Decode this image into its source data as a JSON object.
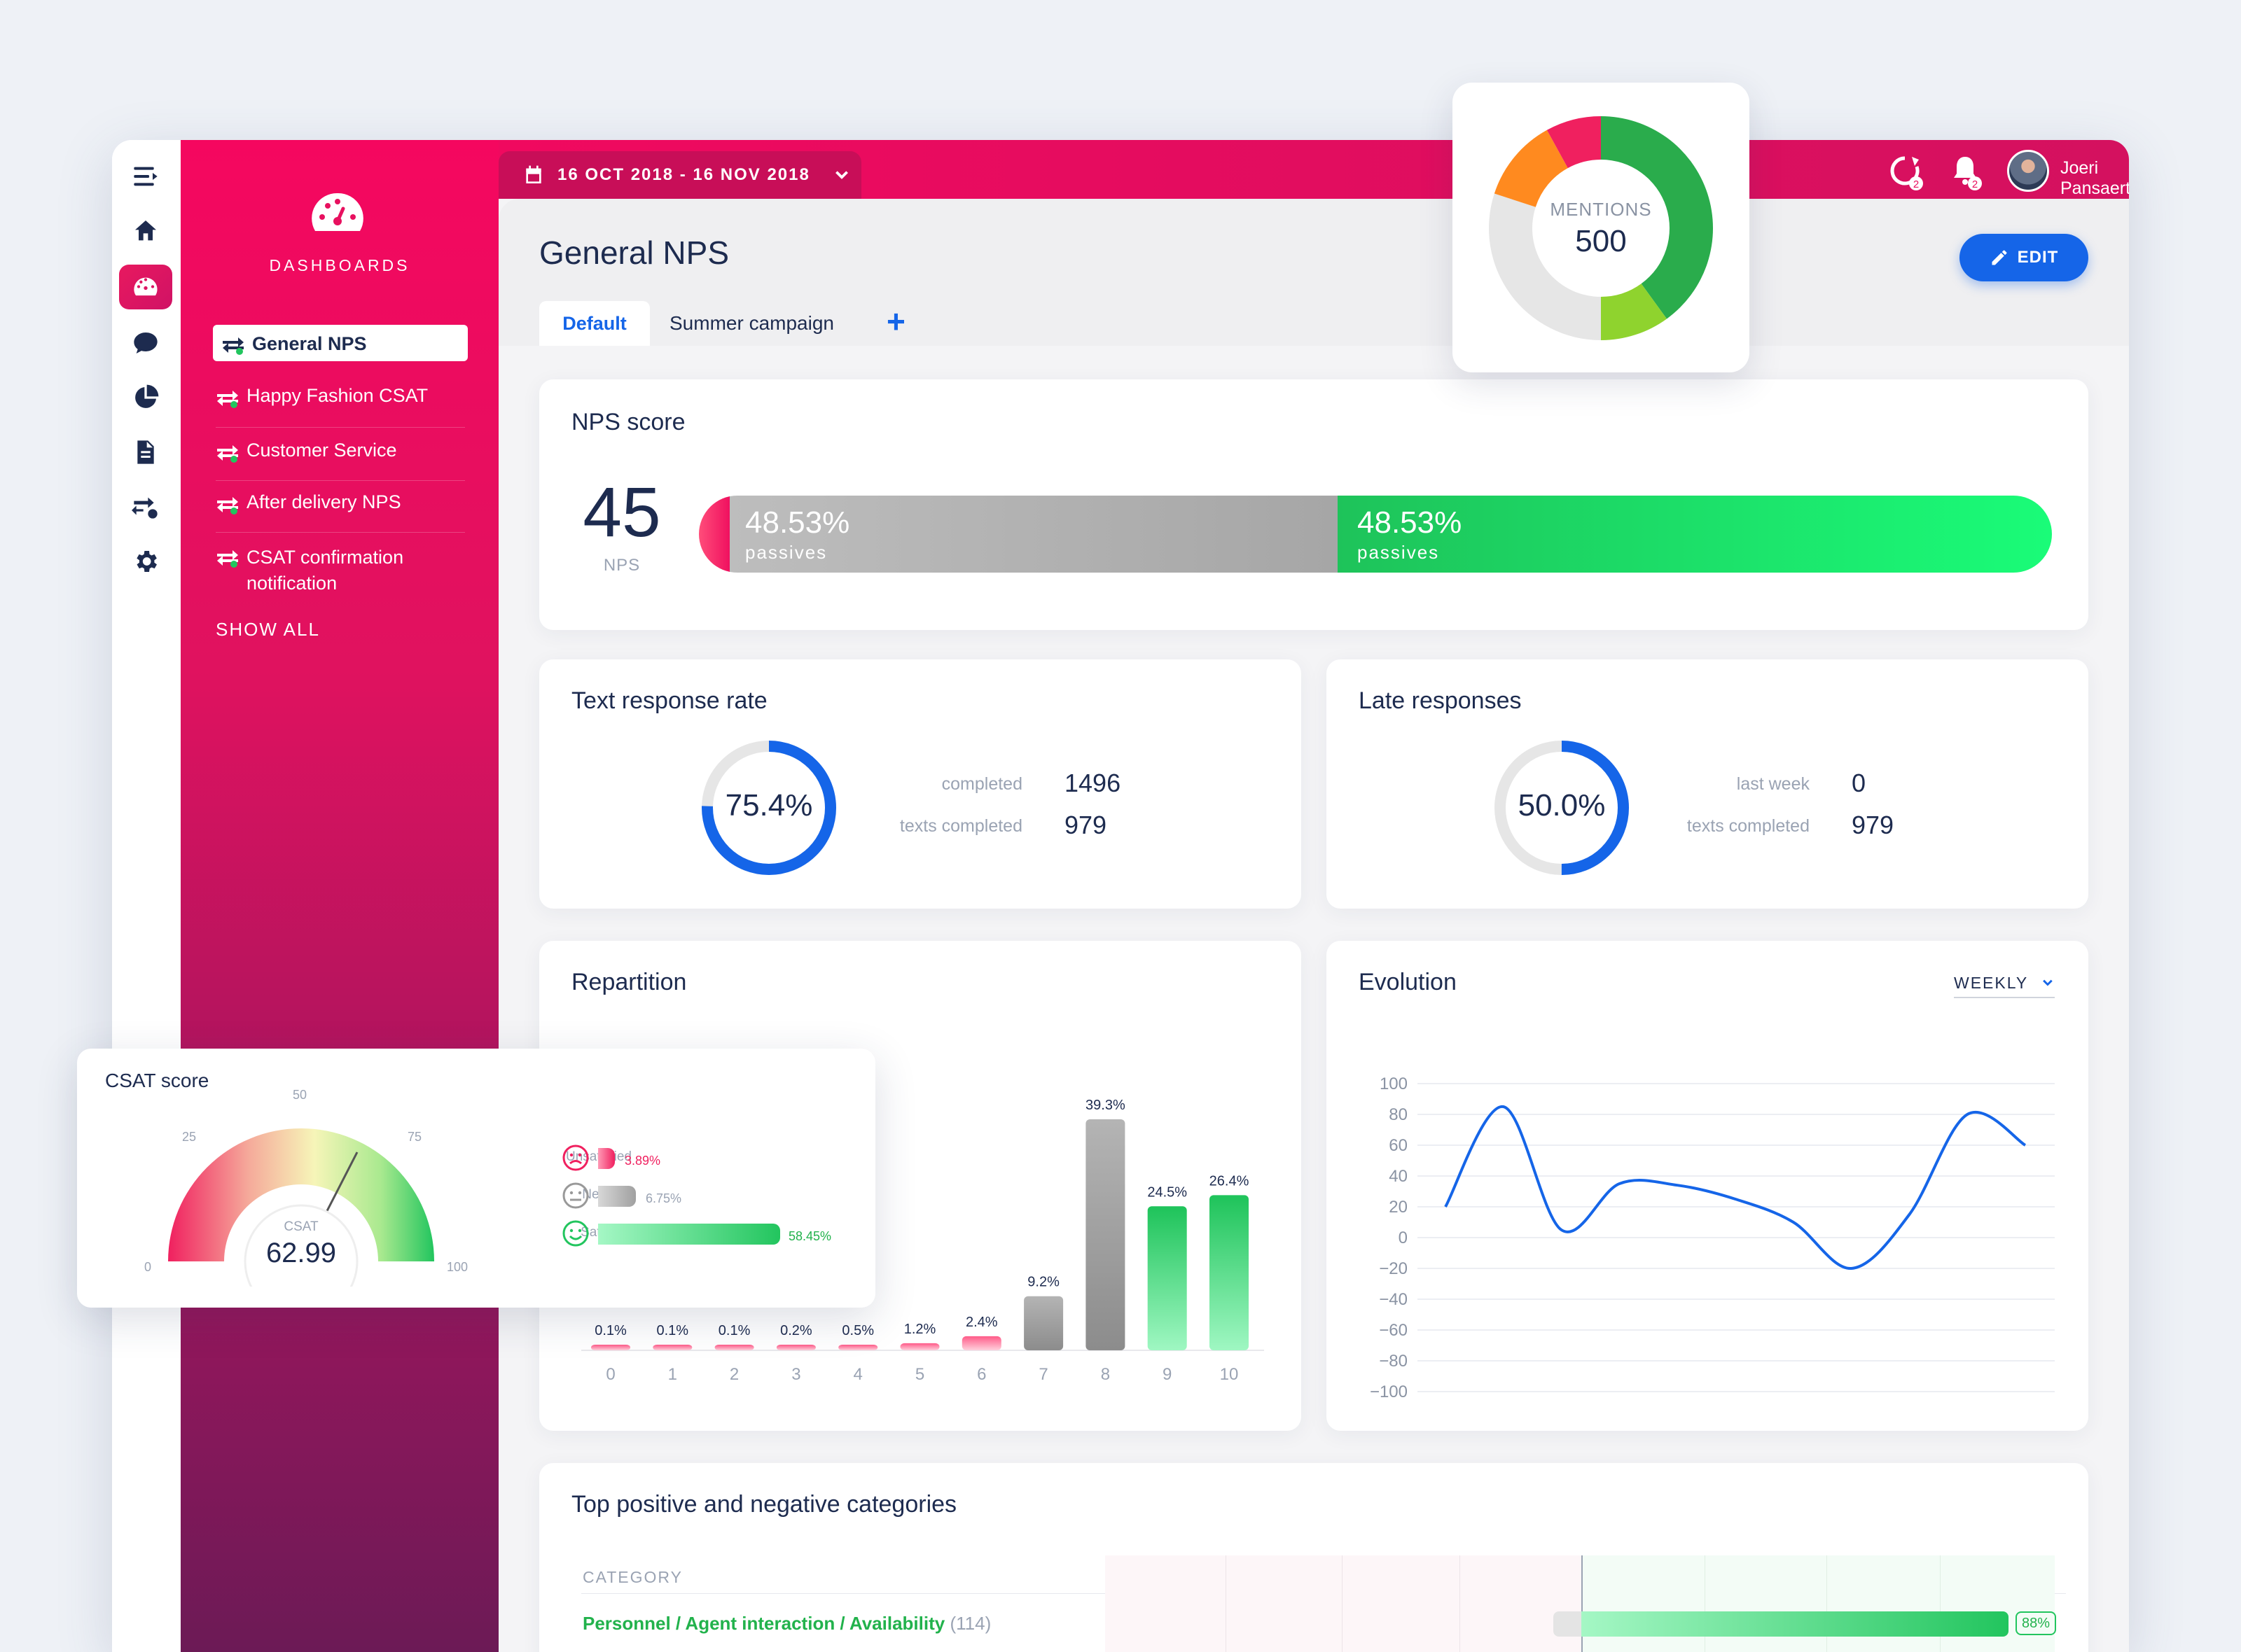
{
  "date_range": "16 OCT 2018 - 16 NOV 2018",
  "user": {
    "name": "Joeri Pansaerts",
    "sync_badge": "2",
    "notif_badge": "2"
  },
  "sidebar": {
    "section": "DASHBOARDS",
    "items": [
      {
        "label": "General NPS"
      },
      {
        "label": "Happy Fashion CSAT"
      },
      {
        "label": "Customer Service"
      },
      {
        "label": "After delivery NPS"
      },
      {
        "label": "CSAT confirmation notification"
      }
    ],
    "show_all": "SHOW ALL"
  },
  "page": {
    "title": "General NPS",
    "edit_label": "EDIT",
    "tabs": [
      {
        "label": "Default"
      },
      {
        "label": "Summer campaign"
      }
    ],
    "add_tab": "+"
  },
  "mentions": {
    "label": "MENTIONS",
    "value": "500"
  },
  "nps": {
    "title": "NPS score",
    "score": "45",
    "score_label": "NPS",
    "segments": [
      {
        "pct": "48.53%",
        "label": "passives"
      },
      {
        "pct": "48.53%",
        "label": "passives"
      }
    ]
  },
  "text_response": {
    "title": "Text response rate",
    "percent": "75.4%",
    "fraction": 0.754,
    "rows": [
      {
        "label": "completed",
        "value": "1496"
      },
      {
        "label": "texts completed",
        "value": "979"
      }
    ]
  },
  "late_responses": {
    "title": "Late responses",
    "percent": "50.0%",
    "fraction": 0.5,
    "rows": [
      {
        "label": "last week",
        "value": "0"
      },
      {
        "label": "texts completed",
        "value": "979"
      }
    ]
  },
  "repartition": {
    "title": "Repartition"
  },
  "evolution": {
    "title": "Evolution",
    "period": "WEEKLY"
  },
  "csat": {
    "title": "CSAT score",
    "value": "62.99",
    "value_label": "CSAT",
    "ticks": [
      "0",
      "25",
      "50",
      "75",
      "100"
    ],
    "rows": [
      {
        "label": "Unsatisfied",
        "pct": "3.89%",
        "color": "#f0205f"
      },
      {
        "label": "Neutrals",
        "pct": "6.75%",
        "color": "#aaaaaa"
      },
      {
        "label": "Satisfied",
        "pct": "58.45%",
        "color": "#22c55e"
      }
    ]
  },
  "categories": {
    "title": "Top positive and negative categories",
    "header": "CATEGORY",
    "rows": [
      {
        "name": "Personnel / Agent interaction / Availability",
        "count": "(114)",
        "pct": "88%"
      }
    ]
  },
  "colors": {
    "brand": "#e8105f",
    "accent": "#1565e8",
    "positive": "#22c55e"
  },
  "chart_data": [
    {
      "type": "bar",
      "categories": [
        "0",
        "1",
        "2",
        "3",
        "4",
        "5",
        "6",
        "7",
        "8",
        "9",
        "10"
      ],
      "values": [
        0.1,
        0.1,
        0.1,
        0.2,
        0.5,
        1.2,
        2.4,
        9.2,
        39.3,
        24.5,
        26.4
      ],
      "labels": [
        "0.1%",
        "0.1%",
        "0.1%",
        "0.2%",
        "0.5%",
        "1.2%",
        "2.4%",
        "9.2%",
        "39.3%",
        "24.5%",
        "26.4%"
      ],
      "title": "Repartition"
    },
    {
      "type": "line",
      "title": "Evolution",
      "x": [
        0,
        1,
        2,
        3,
        4,
        5,
        6,
        7,
        8,
        9,
        10
      ],
      "y": [
        20,
        85,
        5,
        35,
        34,
        25,
        10,
        -20,
        15,
        80,
        60
      ],
      "ylim": [
        -100,
        100
      ],
      "yticks": [
        "100",
        "80",
        "60",
        "40",
        "20",
        "0",
        "−20",
        "−40",
        "−60",
        "−80",
        "−100"
      ],
      "grid": true
    },
    {
      "type": "pie",
      "title": "MENTIONS",
      "values": [
        40,
        10,
        30,
        12,
        8
      ],
      "colors": [
        "#2aac4c",
        "#8fd32e",
        "#e6e6e6",
        "#ff8a1f",
        "#f0205f"
      ]
    }
  ]
}
